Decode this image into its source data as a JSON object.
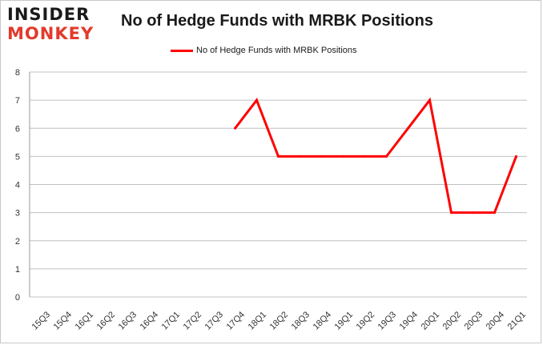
{
  "brand": {
    "logo_line1": "INSIDER",
    "logo_line2": "MONKEY"
  },
  "chart_data": {
    "type": "line",
    "title": "No of Hedge Funds with MRBK Positions",
    "xlabel": "",
    "ylabel": "",
    "ylim": [
      0,
      8
    ],
    "yticks": [
      0,
      1,
      2,
      3,
      4,
      5,
      6,
      7,
      8
    ],
    "grid": true,
    "legend_position": "top-center",
    "categories": [
      "15Q3",
      "15Q4",
      "16Q1",
      "16Q2",
      "16Q3",
      "16Q4",
      "17Q1",
      "17Q2",
      "17Q3",
      "17Q4",
      "18Q1",
      "18Q2",
      "18Q3",
      "18Q4",
      "19Q1",
      "19Q2",
      "19Q3",
      "19Q4",
      "20Q1",
      "20Q2",
      "20Q3",
      "20Q4",
      "21Q1"
    ],
    "series": [
      {
        "name": "No of Hedge Funds with MRBK Positions",
        "color": "#ff0000",
        "values": [
          null,
          null,
          null,
          null,
          null,
          null,
          null,
          null,
          null,
          6,
          7,
          5,
          5,
          5,
          5,
          5,
          5,
          6,
          7,
          3,
          3,
          3,
          5
        ]
      }
    ]
  },
  "colors": {
    "series": "#ff0000",
    "gridline": "#c0c0c0",
    "logo_accent": "#e23a2b"
  }
}
